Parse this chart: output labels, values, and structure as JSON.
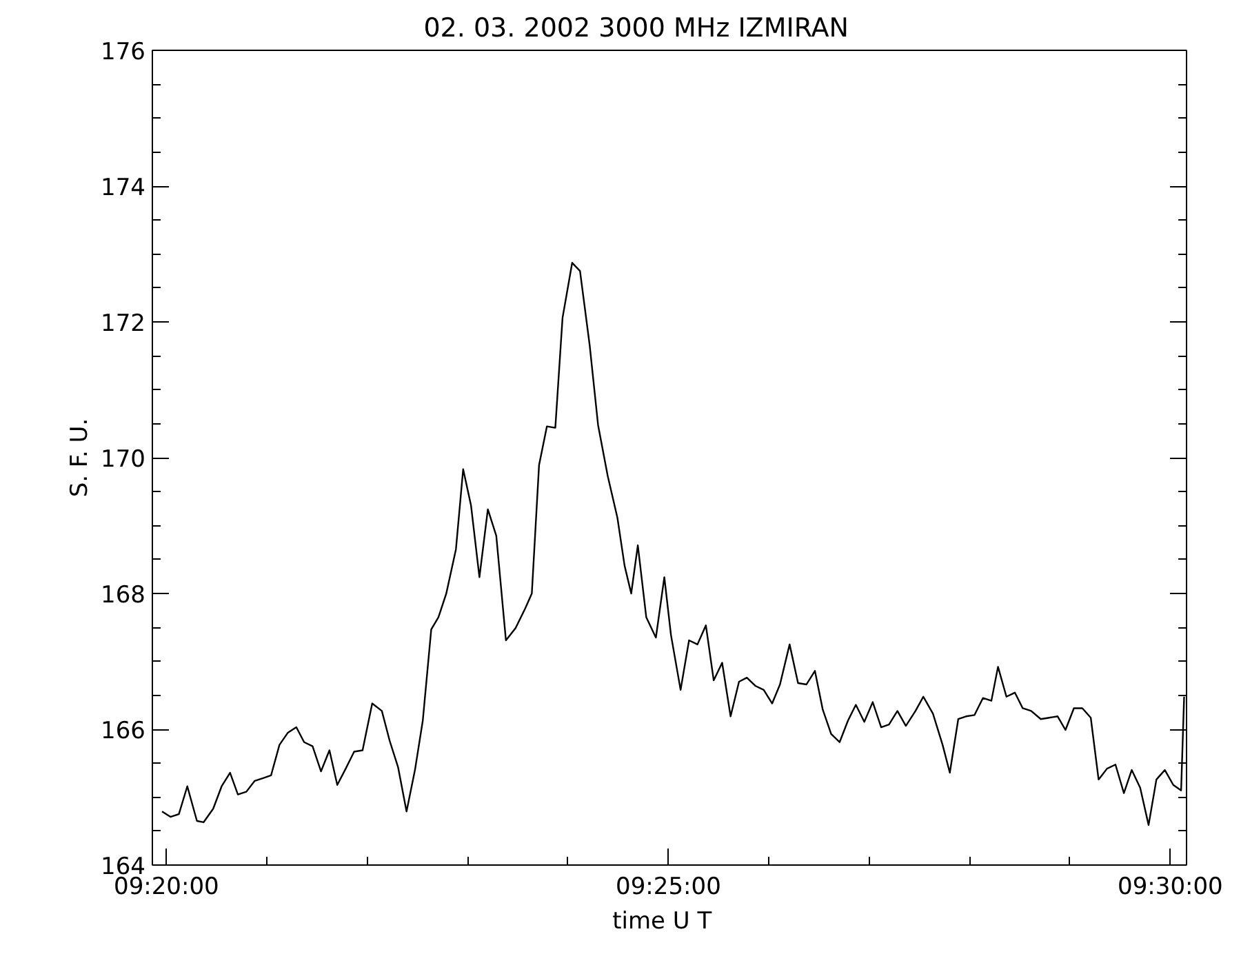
{
  "chart_data": {
    "type": "line",
    "title": "02.  03.  2002    3000 MHz    IZMIRAN",
    "xlabel": "time   U T",
    "ylabel": "S. F. U.",
    "xlim": [
      9.331,
      9.5027
    ],
    "ylim": [
      164,
      176
    ],
    "xticks": [
      {
        "value": 9.33333,
        "label": "09:20:00"
      },
      {
        "value": 9.35,
        "label": null
      },
      {
        "value": 9.36667,
        "label": null
      },
      {
        "value": 9.38333,
        "label": null
      },
      {
        "value": 9.4,
        "label": null
      },
      {
        "value": 9.41667,
        "label": "09:25:00"
      },
      {
        "value": 9.43333,
        "label": null
      },
      {
        "value": 9.45,
        "label": null
      },
      {
        "value": 9.46667,
        "label": null
      },
      {
        "value": 9.48333,
        "label": null
      },
      {
        "value": 9.5,
        "label": "09:30:00"
      }
    ],
    "yticks": [
      164,
      {
        "value": 164.5,
        "label": null
      },
      {
        "value": 165,
        "label": null
      },
      {
        "value": 165.5,
        "label": null
      },
      166,
      {
        "value": 166.5,
        "label": null
      },
      {
        "value": 167,
        "label": null
      },
      {
        "value": 167.5,
        "label": null
      },
      168,
      {
        "value": 168.5,
        "label": null
      },
      {
        "value": 169,
        "label": null
      },
      {
        "value": 169.5,
        "label": null
      },
      170,
      {
        "value": 170.5,
        "label": null
      },
      {
        "value": 171,
        "label": null
      },
      {
        "value": 171.5,
        "label": null
      },
      172,
      {
        "value": 172.5,
        "label": null
      },
      {
        "value": 173,
        "label": null
      },
      {
        "value": 173.5,
        "label": null
      },
      174,
      {
        "value": 174.5,
        "label": null
      },
      {
        "value": 175,
        "label": null
      },
      {
        "value": 175.5,
        "label": null
      },
      176
    ],
    "grid": false,
    "marker": "none",
    "line_style": "solid",
    "series": [
      {
        "color": "#000000",
        "x": [
          9.3326,
          9.334,
          9.3354,
          9.3368,
          9.3384,
          9.3395,
          9.3411,
          9.3425,
          9.3439,
          9.3452,
          9.3466,
          9.348,
          9.3494,
          9.3507,
          9.3521,
          9.3535,
          9.3549,
          9.3562,
          9.3576,
          9.359,
          9.3604,
          9.3617,
          9.3631,
          9.3645,
          9.3659,
          9.3675,
          9.3691,
          9.3704,
          9.3718,
          9.3732,
          9.3746,
          9.3759,
          9.3773,
          9.3785,
          9.3798,
          9.3814,
          9.3826,
          9.3839,
          9.3853,
          9.3867,
          9.3881,
          9.3897,
          9.3913,
          9.3929,
          9.394,
          9.3952,
          9.3965,
          9.3979,
          9.3991,
          9.4007,
          9.402,
          9.4036,
          9.405,
          9.4066,
          9.4082,
          9.4094,
          9.4105,
          9.4116,
          9.413,
          9.4146,
          9.416,
          9.4171,
          9.4187,
          9.4201,
          9.4215,
          9.4229,
          9.4242,
          9.4256,
          9.427,
          9.4284,
          9.4297,
          9.4311,
          9.4325,
          9.4339,
          9.4352,
          9.4368,
          9.4382,
          9.4396,
          9.441,
          9.4423,
          9.4437,
          9.4451,
          9.4465,
          9.4478,
          9.4492,
          9.4506,
          9.452,
          9.4533,
          9.4547,
          9.4561,
          9.4577,
          9.459,
          9.4606,
          9.4622,
          9.4634,
          9.4648,
          9.4661,
          9.4675,
          9.4689,
          9.4703,
          9.4714,
          9.4728,
          9.4742,
          9.4755,
          9.4769,
          9.4785,
          9.4799,
          9.4813,
          9.4826,
          9.484,
          9.4854,
          9.4868,
          9.4881,
          9.4895,
          9.4909,
          9.4923,
          9.4936,
          9.495,
          9.4964,
          9.4977,
          9.4991,
          9.5005,
          9.5018,
          9.5023
        ],
        "values": [
          164.79,
          164.71,
          164.75,
          165.16,
          164.65,
          164.63,
          164.83,
          165.16,
          165.36,
          165.04,
          165.08,
          165.24,
          165.28,
          165.32,
          165.77,
          165.95,
          166.03,
          165.81,
          165.75,
          165.38,
          165.69,
          165.18,
          165.42,
          165.67,
          165.69,
          166.38,
          166.27,
          165.83,
          165.44,
          164.79,
          165.4,
          166.13,
          167.47,
          167.65,
          168.0,
          168.65,
          169.83,
          169.3,
          168.24,
          169.24,
          168.85,
          167.31,
          167.49,
          167.78,
          168.0,
          169.89,
          170.46,
          170.44,
          172.06,
          172.87,
          172.75,
          171.66,
          170.48,
          169.73,
          169.12,
          168.41,
          168.0,
          168.71,
          167.65,
          167.35,
          168.24,
          167.39,
          166.58,
          167.31,
          167.25,
          167.53,
          166.72,
          166.98,
          166.19,
          166.7,
          166.76,
          166.64,
          166.58,
          166.38,
          166.66,
          167.25,
          166.68,
          166.66,
          166.86,
          166.29,
          165.93,
          165.81,
          166.13,
          166.36,
          166.11,
          166.4,
          166.03,
          166.07,
          166.27,
          166.05,
          166.27,
          166.48,
          166.23,
          165.77,
          165.36,
          166.15,
          166.19,
          166.21,
          166.46,
          166.42,
          166.92,
          166.48,
          166.54,
          166.31,
          166.27,
          166.15,
          166.17,
          166.19,
          165.99,
          166.31,
          166.31,
          166.17,
          165.26,
          165.42,
          165.48,
          165.06,
          165.4,
          165.14,
          164.59,
          165.26,
          165.4,
          165.18,
          165.1,
          166.48
        ]
      }
    ]
  }
}
